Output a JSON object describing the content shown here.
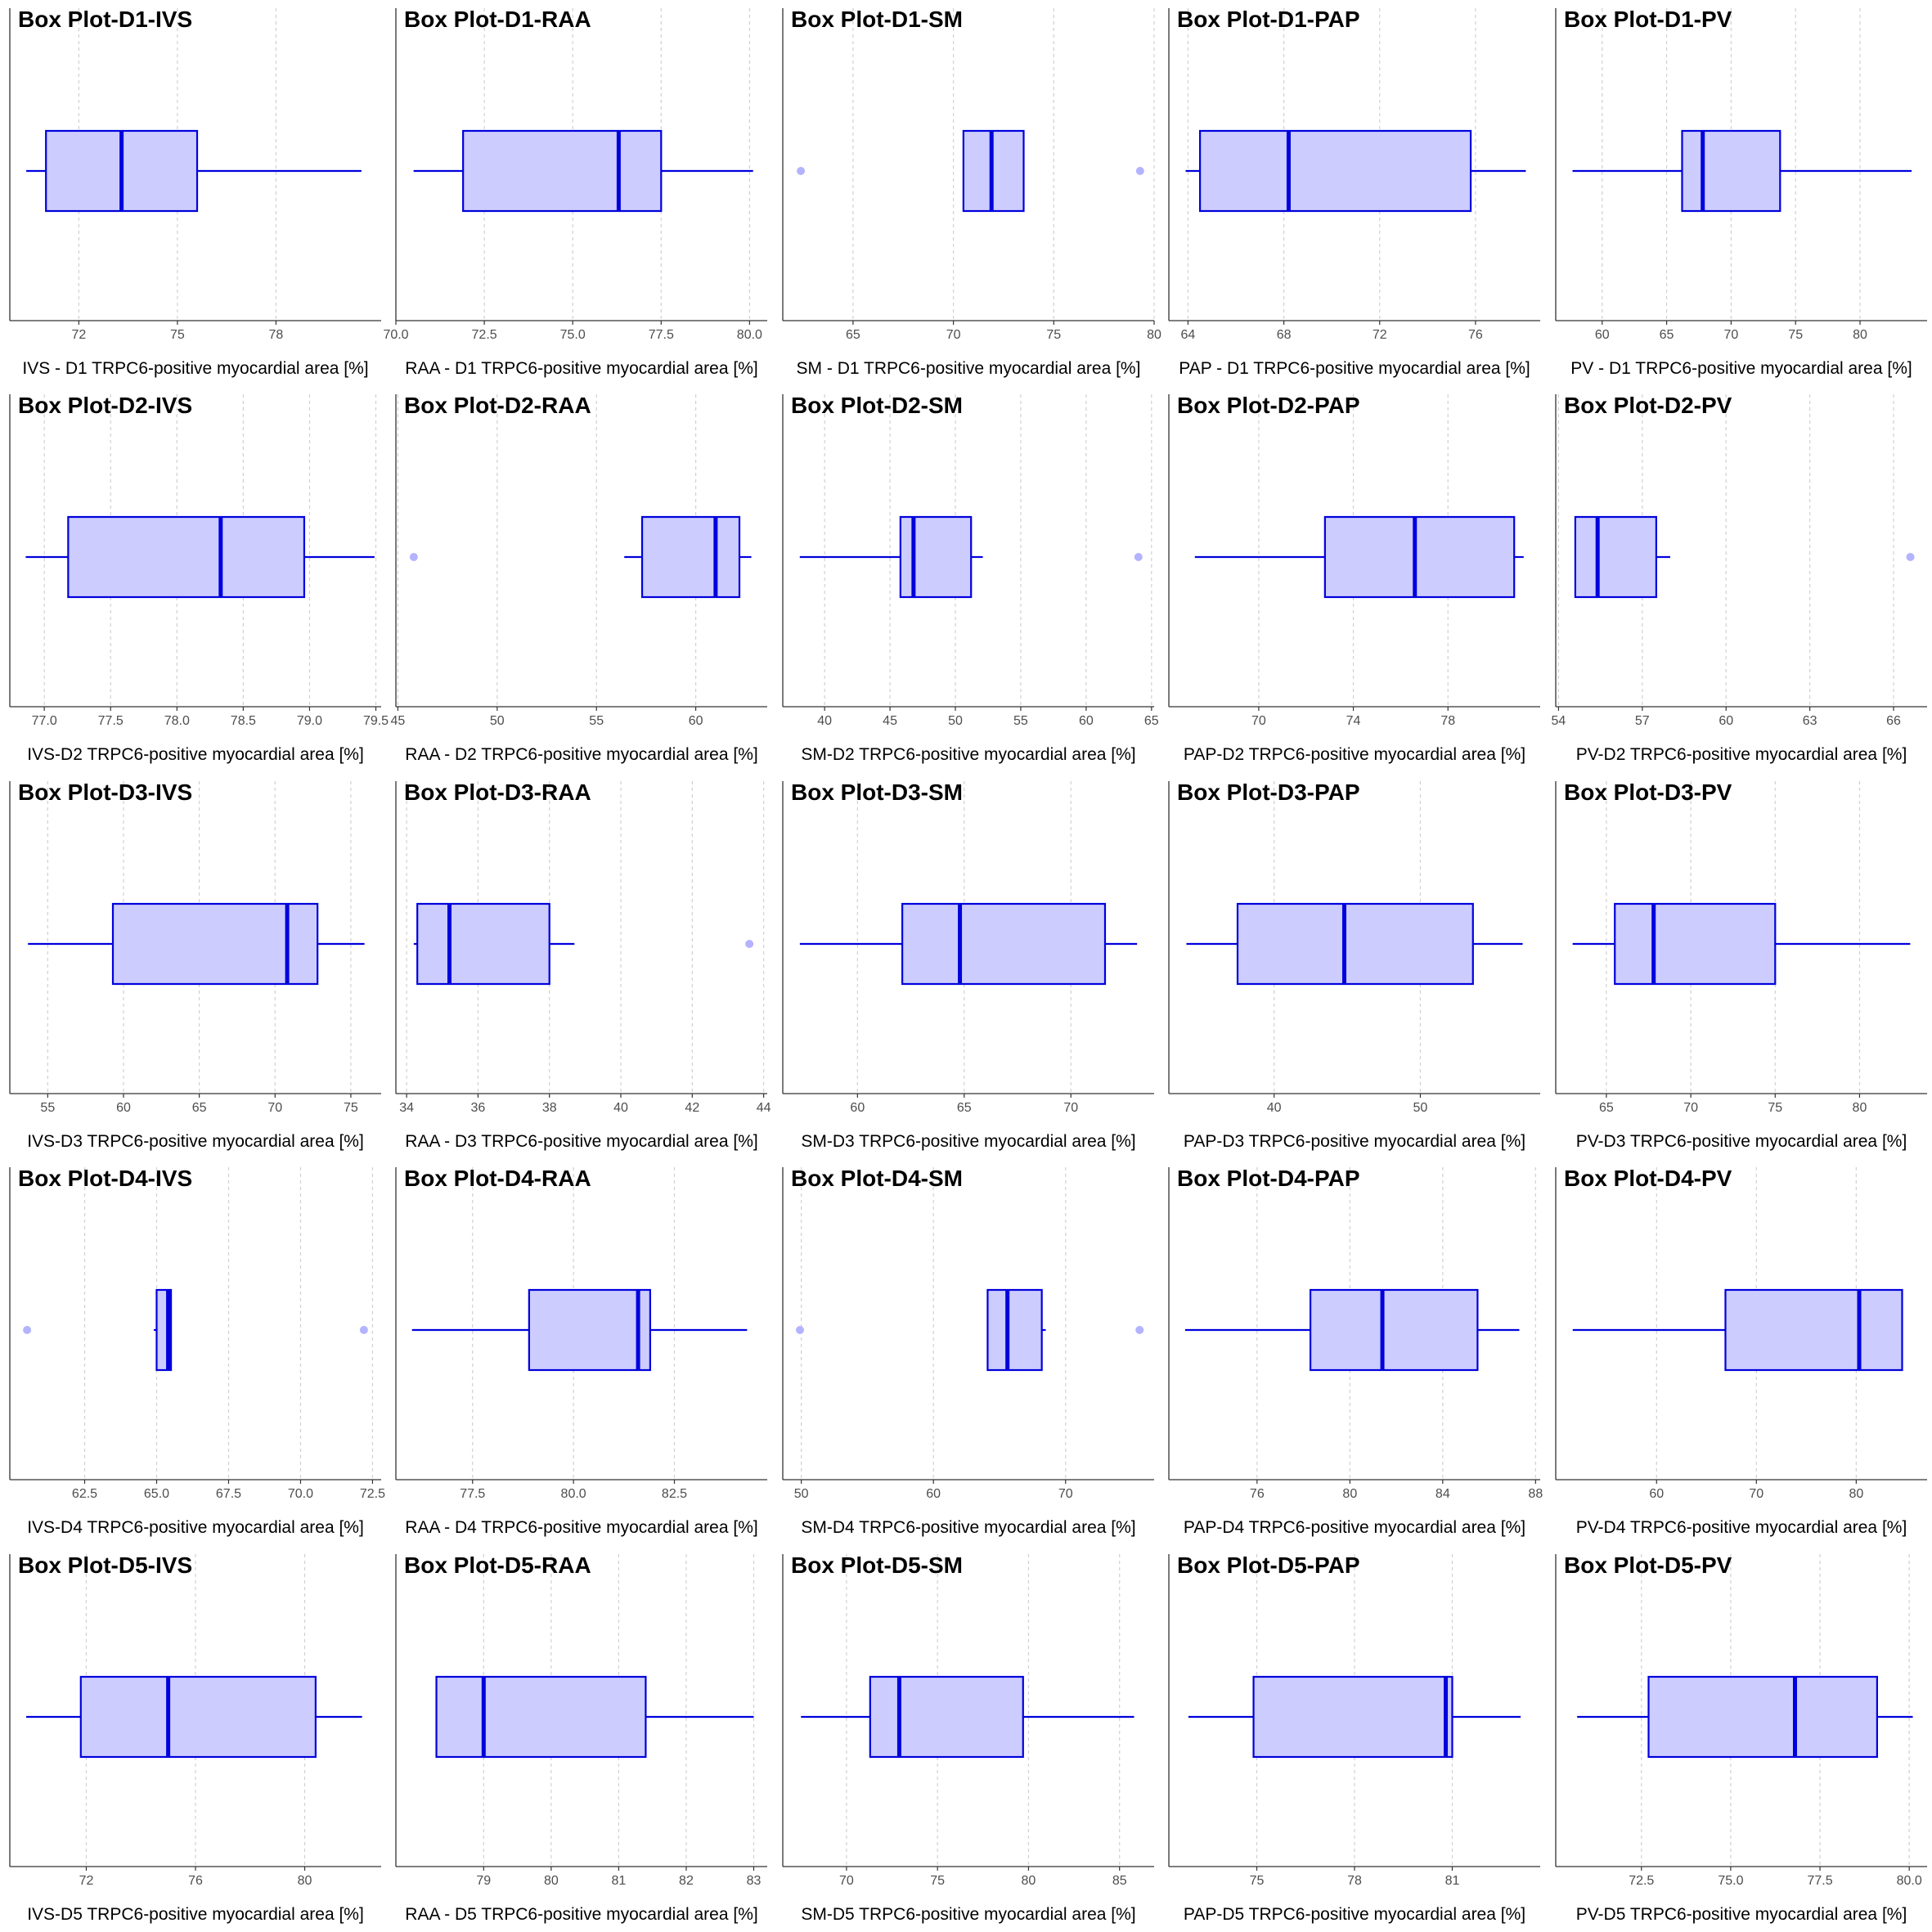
{
  "colors": {
    "box_fill": "#ccccff",
    "box_stroke": "#0000dd",
    "outlier": "#b3b3ff",
    "grid": "#d0d0d0"
  },
  "chart_data": [
    {
      "type": "box",
      "title": "Box Plot-D1-IVS",
      "xlabel": "IVS - D1 TRPC6-positive myocardial area [%]",
      "xlim": [
        69.9,
        81.2
      ],
      "ticks": [
        72,
        75,
        78
      ],
      "tick_labels": [
        "72",
        "75",
        "78"
      ],
      "whisker_low": 70.4,
      "q1": 71.0,
      "median": 73.3,
      "q3": 75.6,
      "whisker_high": 80.6,
      "outliers": []
    },
    {
      "type": "box",
      "title": "Box Plot-D1-RAA",
      "xlabel": "RAA - D1 TRPC6-positive myocardial area [%]",
      "xlim": [
        70.0,
        80.5
      ],
      "ticks": [
        70.0,
        72.5,
        75.0,
        77.5,
        80.0
      ],
      "tick_labels": [
        "70.0",
        "72.5",
        "75.0",
        "77.5",
        "80.0"
      ],
      "whisker_low": 70.5,
      "q1": 71.9,
      "median": 76.3,
      "q3": 77.5,
      "whisker_high": 80.1,
      "outliers": []
    },
    {
      "type": "box",
      "title": "Box Plot-D1-SM",
      "xlabel": "SM - D1 TRPC6-positive myocardial area [%]",
      "xlim": [
        61.5,
        80.0
      ],
      "ticks": [
        65,
        70,
        75,
        80
      ],
      "tick_labels": [
        "65",
        "70",
        "75",
        "80"
      ],
      "whisker_low": 70.5,
      "q1": 70.5,
      "median": 71.9,
      "q3": 73.5,
      "whisker_high": 73.5,
      "outliers": [
        62.4,
        79.3
      ]
    },
    {
      "type": "box",
      "title": "Box Plot-D1-PAP",
      "xlabel": "PAP - D1 TRPC6-positive myocardial area [%]",
      "xlim": [
        63.2,
        78.7
      ],
      "ticks": [
        64,
        68,
        72,
        76
      ],
      "tick_labels": [
        "64",
        "68",
        "72",
        "76"
      ],
      "whisker_low": 63.9,
      "q1": 64.5,
      "median": 68.2,
      "q3": 75.8,
      "whisker_high": 78.1,
      "outliers": []
    },
    {
      "type": "box",
      "title": "Box Plot-D1-PV",
      "xlabel": "PV - D1 TRPC6-positive myocardial area [%]",
      "xlim": [
        56.4,
        85.2
      ],
      "ticks": [
        60,
        65,
        70,
        75,
        80
      ],
      "tick_labels": [
        "60",
        "65",
        "70",
        "75",
        "80"
      ],
      "whisker_low": 57.7,
      "q1": 66.2,
      "median": 67.8,
      "q3": 73.8,
      "whisker_high": 84.0,
      "outliers": []
    },
    {
      "type": "box",
      "title": "Box Plot-D2-IVS",
      "xlabel": "IVS-D2 TRPC6-positive myocardial area [%]",
      "xlim": [
        76.74,
        79.54
      ],
      "ticks": [
        77.0,
        77.5,
        78.0,
        78.5,
        79.0,
        79.5
      ],
      "tick_labels": [
        "77.0",
        "77.5",
        "78.0",
        "78.5",
        "79.0",
        "79.5"
      ],
      "whisker_low": 76.86,
      "q1": 77.18,
      "median": 78.33,
      "q3": 78.96,
      "whisker_high": 79.49,
      "outliers": []
    },
    {
      "type": "box",
      "title": "Box Plot-D2-RAA",
      "xlabel": "RAA - D2 TRPC6-positive myocardial area [%]",
      "xlim": [
        44.9,
        63.6
      ],
      "ticks": [
        45,
        50,
        55,
        60
      ],
      "tick_labels": [
        "45",
        "50",
        "55",
        "60"
      ],
      "whisker_low": 56.4,
      "q1": 57.3,
      "median": 61.0,
      "q3": 62.2,
      "whisker_high": 62.8,
      "outliers": [
        45.8
      ]
    },
    {
      "type": "box",
      "title": "Box Plot-D2-SM",
      "xlabel": "SM-D2 TRPC6-positive myocardial area [%]",
      "xlim": [
        36.8,
        65.2
      ],
      "ticks": [
        40,
        45,
        50,
        55,
        60,
        65
      ],
      "tick_labels": [
        "40",
        "45",
        "50",
        "55",
        "60",
        "65"
      ],
      "whisker_low": 38.1,
      "q1": 45.8,
      "median": 46.8,
      "q3": 51.2,
      "whisker_high": 52.1,
      "outliers": [
        64.0
      ]
    },
    {
      "type": "box",
      "title": "Box Plot-D2-PAP",
      "xlabel": "PAP-D2 TRPC6-positive myocardial area [%]",
      "xlim": [
        66.2,
        81.9
      ],
      "ticks": [
        70,
        74,
        78
      ],
      "tick_labels": [
        "70",
        "74",
        "78"
      ],
      "whisker_low": 67.3,
      "q1": 72.8,
      "median": 76.6,
      "q3": 80.8,
      "whisker_high": 81.2,
      "outliers": []
    },
    {
      "type": "box",
      "title": "Box Plot-D2-PV",
      "xlabel": "PV-D2 TRPC6-positive myocardial area [%]",
      "xlim": [
        53.9,
        67.2
      ],
      "ticks": [
        54,
        57,
        60,
        63,
        66
      ],
      "tick_labels": [
        "54",
        "57",
        "60",
        "63",
        "66"
      ],
      "whisker_low": 54.6,
      "q1": 54.6,
      "median": 55.4,
      "q3": 57.5,
      "whisker_high": 58.0,
      "outliers": [
        66.6
      ]
    },
    {
      "type": "box",
      "title": "Box Plot-D3-IVS",
      "xlabel": "IVS-D3 TRPC6-positive myocardial area [%]",
      "xlim": [
        52.5,
        77.0
      ],
      "ticks": [
        55,
        60,
        65,
        70,
        75
      ],
      "tick_labels": [
        "55",
        "60",
        "65",
        "70",
        "75"
      ],
      "whisker_low": 53.7,
      "q1": 59.3,
      "median": 70.8,
      "q3": 72.8,
      "whisker_high": 75.9,
      "outliers": []
    },
    {
      "type": "box",
      "title": "Box Plot-D3-RAA",
      "xlabel": "RAA - D3 TRPC6-positive myocardial area [%]",
      "xlim": [
        33.7,
        44.1
      ],
      "ticks": [
        34,
        36,
        38,
        40,
        42,
        44
      ],
      "tick_labels": [
        "34",
        "36",
        "38",
        "40",
        "42",
        "44"
      ],
      "whisker_low": 34.2,
      "q1": 34.3,
      "median": 35.2,
      "q3": 38.0,
      "whisker_high": 38.7,
      "outliers": [
        43.6
      ]
    },
    {
      "type": "box",
      "title": "Box Plot-D3-SM",
      "xlabel": "SM-D3 TRPC6-positive myocardial area [%]",
      "xlim": [
        56.5,
        73.9
      ],
      "ticks": [
        60,
        65,
        70
      ],
      "tick_labels": [
        "60",
        "65",
        "70"
      ],
      "whisker_low": 57.3,
      "q1": 62.1,
      "median": 64.8,
      "q3": 71.6,
      "whisker_high": 73.1,
      "outliers": []
    },
    {
      "type": "box",
      "title": "Box Plot-D3-PAP",
      "xlabel": "PAP-D3 TRPC6-positive myocardial area [%]",
      "xlim": [
        32.8,
        58.2
      ],
      "ticks": [
        40,
        50
      ],
      "tick_labels": [
        "40",
        "50"
      ],
      "whisker_low": 34.0,
      "q1": 37.5,
      "median": 44.8,
      "q3": 53.6,
      "whisker_high": 57.0,
      "outliers": []
    },
    {
      "type": "box",
      "title": "Box Plot-D3-PV",
      "xlabel": "PV-D3 TRPC6-positive myocardial area [%]",
      "xlim": [
        62.0,
        84.0
      ],
      "ticks": [
        65,
        70,
        75,
        80
      ],
      "tick_labels": [
        "65",
        "70",
        "75",
        "80"
      ],
      "whisker_low": 63.0,
      "q1": 65.5,
      "median": 67.8,
      "q3": 75.0,
      "whisker_high": 83.0,
      "outliers": []
    },
    {
      "type": "box",
      "title": "Box Plot-D4-IVS",
      "xlabel": "IVS-D4 TRPC6-positive myocardial area [%]",
      "xlim": [
        59.9,
        72.8
      ],
      "ticks": [
        62.5,
        65.0,
        67.5,
        70.0,
        72.5
      ],
      "tick_labels": [
        "62.5",
        "65.0",
        "67.5",
        "70.0",
        "72.5"
      ],
      "whisker_low": 64.9,
      "q1": 65.0,
      "median": 65.4,
      "q3": 65.5,
      "whisker_high": 65.5,
      "outliers": [
        60.5,
        72.2
      ]
    },
    {
      "type": "box",
      "title": "Box Plot-D4-RAA",
      "xlabel": "RAA - D4 TRPC6-positive myocardial area [%]",
      "xlim": [
        75.6,
        84.8
      ],
      "ticks": [
        77.5,
        80.0,
        82.5
      ],
      "tick_labels": [
        "77.5",
        "80.0",
        "82.5"
      ],
      "whisker_low": 76.0,
      "q1": 78.9,
      "median": 81.6,
      "q3": 81.9,
      "whisker_high": 84.3,
      "outliers": []
    },
    {
      "type": "box",
      "title": "Box Plot-D4-SM",
      "xlabel": "SM-D4 TRPC6-positive myocardial area [%]",
      "xlim": [
        48.6,
        76.7
      ],
      "ticks": [
        50,
        60,
        70
      ],
      "tick_labels": [
        "50",
        "60",
        "70"
      ],
      "whisker_low": 64.1,
      "q1": 64.1,
      "median": 65.6,
      "q3": 68.2,
      "whisker_high": 68.5,
      "outliers": [
        49.9,
        75.6
      ]
    },
    {
      "type": "box",
      "title": "Box Plot-D4-PAP",
      "xlabel": "PAP-D4 TRPC6-positive myocardial area [%]",
      "xlim": [
        72.2,
        88.2
      ],
      "ticks": [
        76,
        80,
        84,
        88
      ],
      "tick_labels": [
        "76",
        "80",
        "84",
        "88"
      ],
      "whisker_low": 72.9,
      "q1": 78.3,
      "median": 81.4,
      "q3": 85.5,
      "whisker_high": 87.3,
      "outliers": []
    },
    {
      "type": "box",
      "title": "Box Plot-D4-PV",
      "xlabel": "PV-D4 TRPC6-positive myocardial area [%]",
      "xlim": [
        49.9,
        87.1
      ],
      "ticks": [
        60,
        70,
        80
      ],
      "tick_labels": [
        "60",
        "70",
        "80"
      ],
      "whisker_low": 51.6,
      "q1": 66.9,
      "median": 80.3,
      "q3": 84.6,
      "whisker_high": 84.6,
      "outliers": []
    },
    {
      "type": "box",
      "title": "Box Plot-D5-IVS",
      "xlabel": "IVS-D5 TRPC6-positive myocardial area [%]",
      "xlim": [
        69.2,
        82.8
      ],
      "ticks": [
        72,
        76,
        80
      ],
      "tick_labels": [
        "72",
        "76",
        "80"
      ],
      "whisker_low": 69.8,
      "q1": 71.8,
      "median": 75.0,
      "q3": 80.4,
      "whisker_high": 82.1,
      "outliers": []
    },
    {
      "type": "box",
      "title": "Box Plot-D5-RAA",
      "xlabel": "RAA - D5 TRPC6-positive myocardial area [%]",
      "xlim": [
        77.7,
        83.2
      ],
      "ticks": [
        79,
        80,
        81,
        82,
        83
      ],
      "tick_labels": [
        "79",
        "80",
        "81",
        "82",
        "83"
      ],
      "whisker_low": 78.3,
      "q1": 78.3,
      "median": 79.0,
      "q3": 81.4,
      "whisker_high": 83.0,
      "outliers": []
    },
    {
      "type": "box",
      "title": "Box Plot-D5-SM",
      "xlabel": "SM-D5 TRPC6-positive myocardial area [%]",
      "xlim": [
        66.5,
        86.9
      ],
      "ticks": [
        70,
        75,
        80,
        85
      ],
      "tick_labels": [
        "70",
        "75",
        "80",
        "85"
      ],
      "whisker_low": 67.5,
      "q1": 71.3,
      "median": 72.9,
      "q3": 79.7,
      "whisker_high": 85.8,
      "outliers": []
    },
    {
      "type": "box",
      "title": "Box Plot-D5-PAP",
      "xlabel": "PAP-D5 TRPC6-positive myocardial area [%]",
      "xlim": [
        72.3,
        83.7
      ],
      "ticks": [
        75,
        78,
        81
      ],
      "tick_labels": [
        "75",
        "78",
        "81"
      ],
      "whisker_low": 72.9,
      "q1": 74.9,
      "median": 80.8,
      "q3": 81.0,
      "whisker_high": 83.1,
      "outliers": []
    },
    {
      "type": "box",
      "title": "Box Plot-D5-PV",
      "xlabel": "PV-D5 TRPC6-positive myocardial area [%]",
      "xlim": [
        70.1,
        80.5
      ],
      "ticks": [
        72.5,
        75.0,
        77.5,
        80.0
      ],
      "tick_labels": [
        "72.5",
        "75.0",
        "77.5",
        "80.0"
      ],
      "whisker_low": 70.7,
      "q1": 72.7,
      "median": 76.8,
      "q3": 79.1,
      "whisker_high": 80.1,
      "outliers": []
    }
  ]
}
